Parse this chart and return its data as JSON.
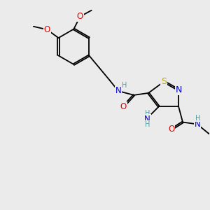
{
  "bg_color": "#ebebeb",
  "bond_color": "#000000",
  "bond_width": 1.3,
  "atom_colors": {
    "N": "#0000cc",
    "O": "#ee0000",
    "S": "#bbaa00",
    "H": "#559999"
  },
  "font_size_atom": 8.5,
  "font_size_h": 7.0
}
